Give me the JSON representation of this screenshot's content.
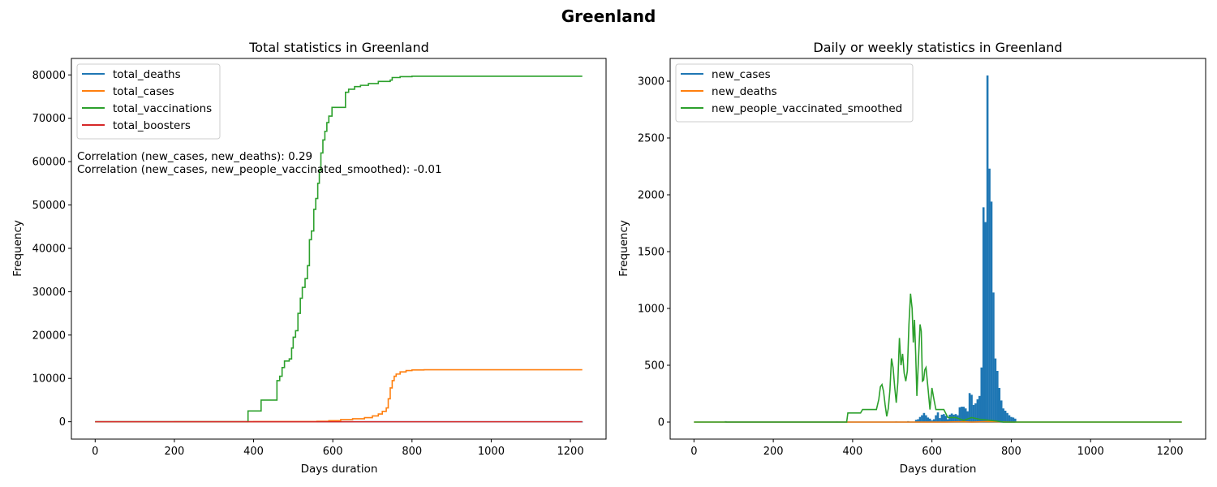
{
  "figure": {
    "suptitle": "Greenland"
  },
  "chart_data": [
    {
      "type": "line",
      "title": "Total statistics in Greenland",
      "xlabel": "Days duration",
      "ylabel": "Frequency",
      "xlim": [
        -60,
        1290
      ],
      "ylim": [
        -4000,
        83800
      ],
      "xticks": [
        0,
        200,
        400,
        600,
        800,
        1000,
        1200
      ],
      "yticks": [
        0,
        10000,
        20000,
        30000,
        40000,
        50000,
        60000,
        70000,
        80000
      ],
      "legend_position": "upper-left",
      "annotations": [
        "Correlation (new_cases, new_deaths): 0.29",
        "Correlation (new_cases, new_people_vaccinated_smoothed): -0.01"
      ],
      "series": [
        {
          "name": "total_deaths",
          "color": "#1f77b4",
          "step": true,
          "points": [
            [
              0,
              0
            ],
            [
              1230,
              21
            ]
          ]
        },
        {
          "name": "total_cases",
          "color": "#ff7f0e",
          "step": true,
          "points": [
            [
              0,
              0
            ],
            [
              200,
              20
            ],
            [
              400,
              30
            ],
            [
              560,
              120
            ],
            [
              590,
              250
            ],
            [
              620,
              500
            ],
            [
              650,
              700
            ],
            [
              680,
              950
            ],
            [
              700,
              1350
            ],
            [
              715,
              1800
            ],
            [
              725,
              2400
            ],
            [
              735,
              3200
            ],
            [
              740,
              5300
            ],
            [
              745,
              7800
            ],
            [
              750,
              9500
            ],
            [
              755,
              10500
            ],
            [
              760,
              11000
            ],
            [
              770,
              11500
            ],
            [
              785,
              11800
            ],
            [
              800,
              11950
            ],
            [
              830,
              12000
            ],
            [
              1230,
              12000
            ]
          ]
        },
        {
          "name": "total_vaccinations",
          "color": "#2ca02c",
          "step": true,
          "points": [
            [
              0,
              0
            ],
            [
              385,
              0
            ],
            [
              386,
              2500
            ],
            [
              418,
              2500
            ],
            [
              419,
              5000
            ],
            [
              458,
              5000
            ],
            [
              459,
              9500
            ],
            [
              466,
              10500
            ],
            [
              472,
              12500
            ],
            [
              478,
              14000
            ],
            [
              490,
              14500
            ],
            [
              496,
              17000
            ],
            [
              500,
              19500
            ],
            [
              506,
              21000
            ],
            [
              512,
              25000
            ],
            [
              518,
              28500
            ],
            [
              523,
              31000
            ],
            [
              530,
              33000
            ],
            [
              536,
              36000
            ],
            [
              541,
              42000
            ],
            [
              546,
              44000
            ],
            [
              552,
              49000
            ],
            [
              557,
              51500
            ],
            [
              562,
              55000
            ],
            [
              566,
              58000
            ],
            [
              570,
              62000
            ],
            [
              575,
              65000
            ],
            [
              580,
              67000
            ],
            [
              585,
              69000
            ],
            [
              590,
              70500
            ],
            [
              598,
              72500
            ],
            [
              630,
              72500
            ],
            [
              632,
              76000
            ],
            [
              640,
              76700
            ],
            [
              655,
              77300
            ],
            [
              670,
              77600
            ],
            [
              690,
              78000
            ],
            [
              715,
              78500
            ],
            [
              745,
              78800
            ],
            [
              750,
              79400
            ],
            [
              770,
              79600
            ],
            [
              800,
              79700
            ],
            [
              1230,
              79700
            ]
          ]
        },
        {
          "name": "total_boosters",
          "color": "#d62728",
          "step": true,
          "points": [
            [
              0,
              0
            ],
            [
              1230,
              0
            ]
          ]
        }
      ]
    },
    {
      "type": "line",
      "title": "Daily or weekly statistics in Greenland",
      "xlabel": "Days duration",
      "ylabel": "Frequency",
      "xlim": [
        -60,
        1290
      ],
      "ylim": [
        -150,
        3200
      ],
      "xticks": [
        0,
        200,
        400,
        600,
        800,
        1000,
        1200
      ],
      "yticks": [
        0,
        500,
        1000,
        1500,
        2000,
        2500,
        3000
      ],
      "legend_position": "upper-left",
      "series": [
        {
          "name": "new_cases",
          "color": "#1f77b4",
          "spikes": [
            [
              80,
              8
            ],
            [
              360,
              5
            ],
            [
              510,
              5
            ],
            [
              540,
              8
            ],
            [
              560,
              20
            ],
            [
              565,
              25
            ],
            [
              570,
              45
            ],
            [
              575,
              60
            ],
            [
              580,
              80
            ],
            [
              585,
              60
            ],
            [
              590,
              40
            ],
            [
              595,
              30
            ],
            [
              600,
              15
            ],
            [
              605,
              25
            ],
            [
              610,
              60
            ],
            [
              615,
              85
            ],
            [
              620,
              35
            ],
            [
              625,
              65
            ],
            [
              630,
              70
            ],
            [
              635,
              55
            ],
            [
              640,
              25
            ],
            [
              645,
              65
            ],
            [
              650,
              75
            ],
            [
              655,
              65
            ],
            [
              660,
              70
            ],
            [
              665,
              60
            ],
            [
              670,
              130
            ],
            [
              675,
              135
            ],
            [
              680,
              135
            ],
            [
              685,
              120
            ],
            [
              690,
              95
            ],
            [
              695,
              255
            ],
            [
              700,
              240
            ],
            [
              705,
              150
            ],
            [
              710,
              165
            ],
            [
              715,
              200
            ],
            [
              720,
              230
            ],
            [
              725,
              480
            ],
            [
              730,
              1890
            ],
            [
              735,
              1760
            ],
            [
              740,
              3050
            ],
            [
              745,
              2230
            ],
            [
              750,
              1940
            ],
            [
              755,
              1140
            ],
            [
              760,
              560
            ],
            [
              765,
              450
            ],
            [
              770,
              300
            ],
            [
              775,
              190
            ],
            [
              780,
              120
            ],
            [
              785,
              100
            ],
            [
              790,
              80
            ],
            [
              795,
              60
            ],
            [
              800,
              45
            ],
            [
              805,
              40
            ],
            [
              810,
              30
            ]
          ]
        },
        {
          "name": "new_deaths",
          "color": "#ff7f0e",
          "points": [
            [
              0,
              0
            ],
            [
              630,
              0
            ],
            [
              680,
              3
            ],
            [
              700,
              0
            ],
            [
              740,
              4
            ],
            [
              800,
              0
            ],
            [
              1230,
              0
            ]
          ]
        },
        {
          "name": "new_people_vaccinated_smoothed",
          "color": "#2ca02c",
          "points": [
            [
              0,
              0
            ],
            [
              385,
              0
            ],
            [
              388,
              80
            ],
            [
              420,
              80
            ],
            [
              425,
              110
            ],
            [
              460,
              110
            ],
            [
              466,
              200
            ],
            [
              470,
              310
            ],
            [
              474,
              330
            ],
            [
              478,
              270
            ],
            [
              482,
              150
            ],
            [
              486,
              50
            ],
            [
              490,
              120
            ],
            [
              494,
              280
            ],
            [
              498,
              560
            ],
            [
              502,
              480
            ],
            [
              506,
              310
            ],
            [
              510,
              170
            ],
            [
              514,
              350
            ],
            [
              518,
              740
            ],
            [
              522,
              500
            ],
            [
              526,
              600
            ],
            [
              530,
              430
            ],
            [
              534,
              360
            ],
            [
              538,
              450
            ],
            [
              542,
              860
            ],
            [
              546,
              1130
            ],
            [
              550,
              1000
            ],
            [
              553,
              700
            ],
            [
              556,
              900
            ],
            [
              559,
              600
            ],
            [
              562,
              230
            ],
            [
              566,
              550
            ],
            [
              570,
              860
            ],
            [
              573,
              800
            ],
            [
              576,
              360
            ],
            [
              579,
              370
            ],
            [
              582,
              460
            ],
            [
              585,
              480
            ],
            [
              590,
              300
            ],
            [
              595,
              110
            ],
            [
              600,
              300
            ],
            [
              605,
              200
            ],
            [
              610,
              110
            ],
            [
              630,
              110
            ],
            [
              640,
              40
            ],
            [
              660,
              40
            ],
            [
              680,
              15
            ],
            [
              700,
              40
            ],
            [
              720,
              25
            ],
            [
              760,
              10
            ],
            [
              780,
              0
            ],
            [
              1230,
              0
            ]
          ]
        }
      ]
    }
  ]
}
